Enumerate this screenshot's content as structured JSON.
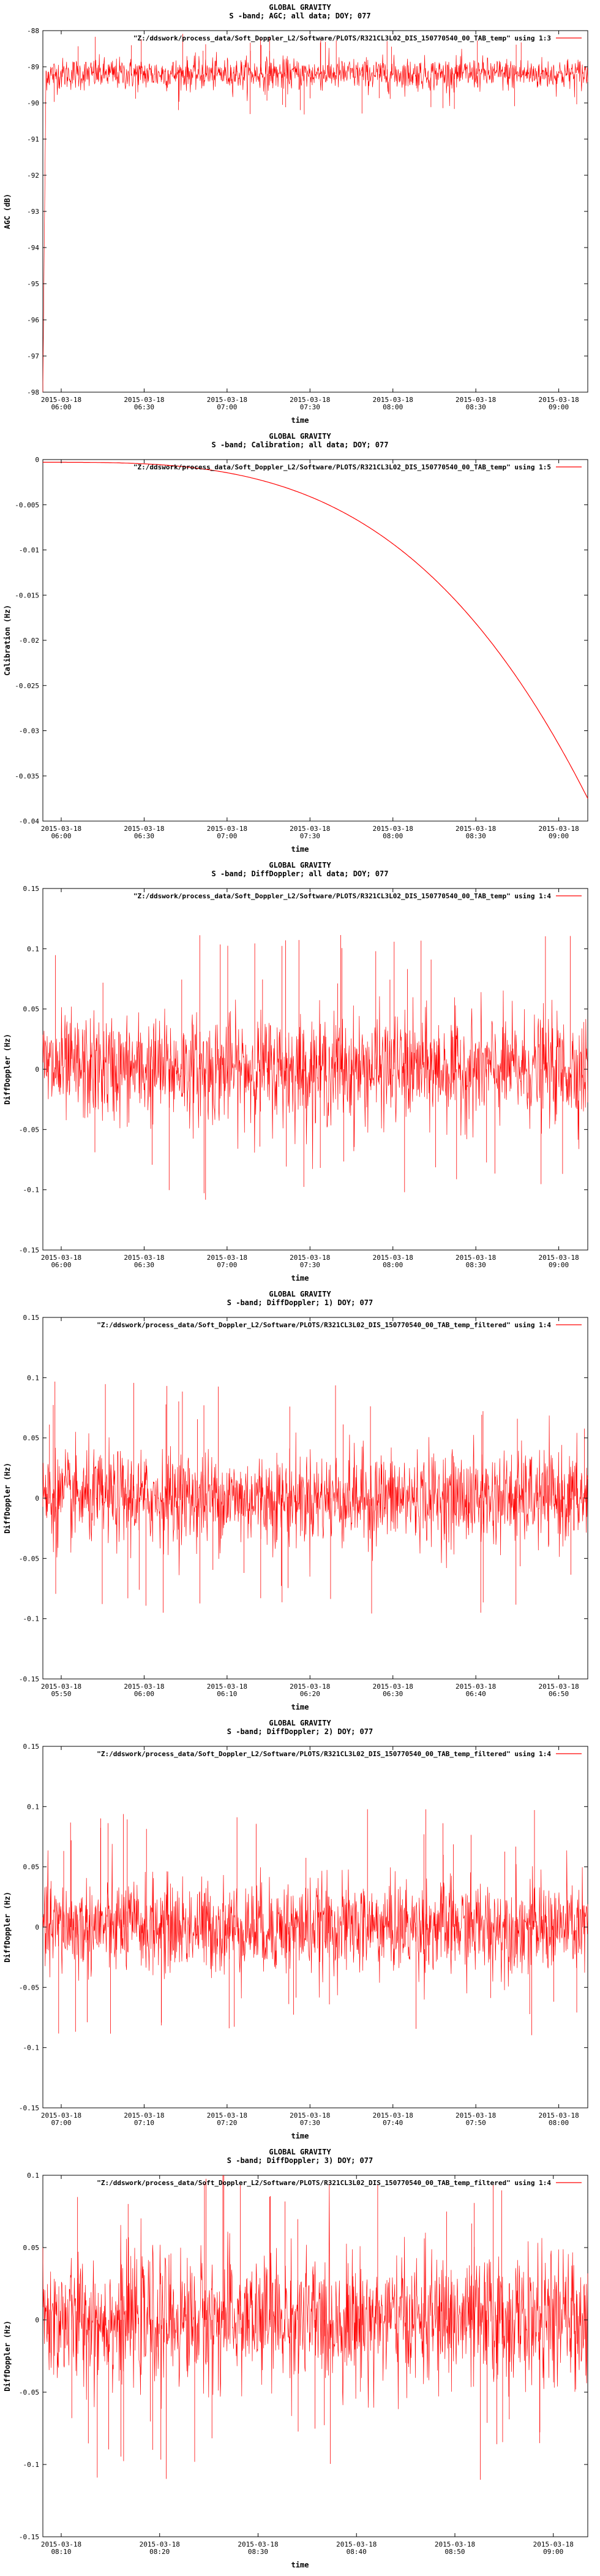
{
  "chart_data": [
    {
      "type": "line",
      "title": "GLOBAL GRAVITY",
      "subtitle": "S -band; AGC; all data; DOY; 077",
      "xlabel": "time",
      "ylabel": "AGC (dB)",
      "legend": "\"Z:/ddswork/process_data/Soft_Doppler_L2/Software/PLOTS/R321CL3L02_DIS_150770540_00_TAB_temp\" using 1:3",
      "legend_position": "top-right",
      "grid": false,
      "ylim": [
        -98,
        -88
      ],
      "yticks": [
        "-88",
        "-89",
        "-90",
        "-91",
        "-92",
        "-93",
        "-94",
        "-95",
        "-96",
        "-97",
        "-98"
      ],
      "xticks": [
        "2015-03-18\n06:00",
        "2015-03-18\n06:30",
        "2015-03-18\n07:00",
        "2015-03-18\n07:30",
        "2015-03-18\n08:00",
        "2015-03-18\n08:30",
        "2015-03-18\n09:00"
      ],
      "series": [
        {
          "name": "",
          "mean": -89.2,
          "noise_amplitude": 0.4,
          "color": "#ff0000"
        }
      ],
      "features": {
        "initial_dip_to": -98
      }
    },
    {
      "type": "line",
      "title": "GLOBAL GRAVITY",
      "subtitle": "S -band; Calibration; all data; DOY; 077",
      "xlabel": "time",
      "ylabel": "Calibration (Hz)",
      "legend": "\"Z:/ddswork/process_data/Soft_Doppler_L2/Software/PLOTS/R321CL3L02_DIS_150770540_00_TAB_temp\" using 1:5",
      "legend_position": "top-right",
      "grid": false,
      "ylim": [
        -0.04,
        0
      ],
      "yticks": [
        "0",
        "-0.005",
        "-0.01",
        "-0.015",
        "-0.02",
        "-0.025",
        "-0.03",
        "-0.035",
        "-0.04"
      ],
      "xticks": [
        "2015-03-18\n06:00",
        "2015-03-18\n06:30",
        "2015-03-18\n07:00",
        "2015-03-18\n07:30",
        "2015-03-18\n08:00",
        "2015-03-18\n08:30",
        "2015-03-18\n09:00"
      ],
      "series": [
        {
          "name": "",
          "start": -0.0003,
          "end": -0.0375,
          "color": "#ff0000"
        }
      ]
    },
    {
      "type": "line",
      "title": "GLOBAL GRAVITY",
      "subtitle": "S -band; DiffDoppler; all data; DOY; 077",
      "xlabel": "time",
      "ylabel": "DiffDoppler (Hz)",
      "legend": "\"Z:/ddswork/process_data/Soft_Doppler_L2/Software/PLOTS/R321CL3L02_DIS_150770540_00_TAB_temp\" using 1:4",
      "legend_position": "top-right",
      "grid": false,
      "ylim": [
        -0.15,
        0.15
      ],
      "yticks": [
        "0.15",
        "0.1",
        "0.05",
        "0",
        "-0.05",
        "-0.1",
        "-0.15"
      ],
      "xticks": [
        "2015-03-18\n06:00",
        "2015-03-18\n06:30",
        "2015-03-18\n07:00",
        "2015-03-18\n07:30",
        "2015-03-18\n08:00",
        "2015-03-18\n08:30",
        "2015-03-18\n09:00"
      ],
      "series": [
        {
          "name": "",
          "mean": 0.0,
          "noise_amplitude": 0.04,
          "color": "#ff0000"
        }
      ]
    },
    {
      "type": "line",
      "title": "GLOBAL GRAVITY",
      "subtitle": "S -band; DiffDoppler; 1) DOY; 077",
      "xlabel": "time",
      "ylabel": "DiffDoppler (Hz)",
      "legend": "\"Z:/ddswork/process_data/Soft_Doppler_L2/Software/PLOTS/R321CL3L02_DIS_150770540_00_TAB_temp_filtered\" using 1:4",
      "legend_position": "top-right",
      "grid": false,
      "ylim": [
        -0.15,
        0.15
      ],
      "yticks": [
        "0.15",
        "0.1",
        "0.05",
        "0",
        "-0.05",
        "-0.1",
        "-0.15"
      ],
      "xticks": [
        "2015-03-18\n05:50",
        "2015-03-18\n06:00",
        "2015-03-18\n06:10",
        "2015-03-18\n06:20",
        "2015-03-18\n06:30",
        "2015-03-18\n06:40",
        "2015-03-18\n06:50"
      ],
      "series": [
        {
          "name": "",
          "mean": 0.0,
          "noise_amplitude": 0.035,
          "color": "#ff0000"
        }
      ]
    },
    {
      "type": "line",
      "title": "GLOBAL GRAVITY",
      "subtitle": "S -band; DiffDoppler; 2) DOY; 077",
      "xlabel": "time",
      "ylabel": "DiffDoppler (Hz)",
      "legend": "\"Z:/ddswork/process_data/Soft_Doppler_L2/Software/PLOTS/R321CL3L02_DIS_150770540_00_TAB_temp_filtered\" using 1:4",
      "legend_position": "top-right",
      "grid": false,
      "ylim": [
        -0.15,
        0.15
      ],
      "yticks": [
        "0.15",
        "0.1",
        "0.05",
        "0",
        "-0.05",
        "-0.1",
        "-0.15"
      ],
      "xticks": [
        "2015-03-18\n07:00",
        "2015-03-18\n07:10",
        "2015-03-18\n07:20",
        "2015-03-18\n07:30",
        "2015-03-18\n07:40",
        "2015-03-18\n07:50",
        "2015-03-18\n08:00"
      ],
      "series": [
        {
          "name": "",
          "mean": 0.0,
          "noise_amplitude": 0.035,
          "color": "#ff0000"
        }
      ]
    },
    {
      "type": "line",
      "title": "GLOBAL GRAVITY",
      "subtitle": "S -band; DiffDoppler; 3) DOY; 077",
      "xlabel": "time",
      "ylabel": "DiffDoppler (Hz)",
      "legend": "\"Z:/ddswork/process_data/Soft_Doppler_L2/Software/PLOTS/R321CL3L02_DIS_150770540_00_TAB_temp_filtered\" using 1:4",
      "legend_position": "top-right",
      "grid": false,
      "ylim": [
        -0.15,
        0.1
      ],
      "yticks": [
        "0.1",
        "0.05",
        "0",
        "-0.05",
        "-0.1",
        "-0.15"
      ],
      "xticks": [
        "2015-03-18\n08:10",
        "2015-03-18\n08:20",
        "2015-03-18\n08:30",
        "2015-03-18\n08:40",
        "2015-03-18\n08:50",
        "2015-03-18\n09:00"
      ],
      "series": [
        {
          "name": "",
          "mean": 0.0,
          "noise_amplitude": 0.04,
          "color": "#ff0000"
        }
      ]
    }
  ]
}
